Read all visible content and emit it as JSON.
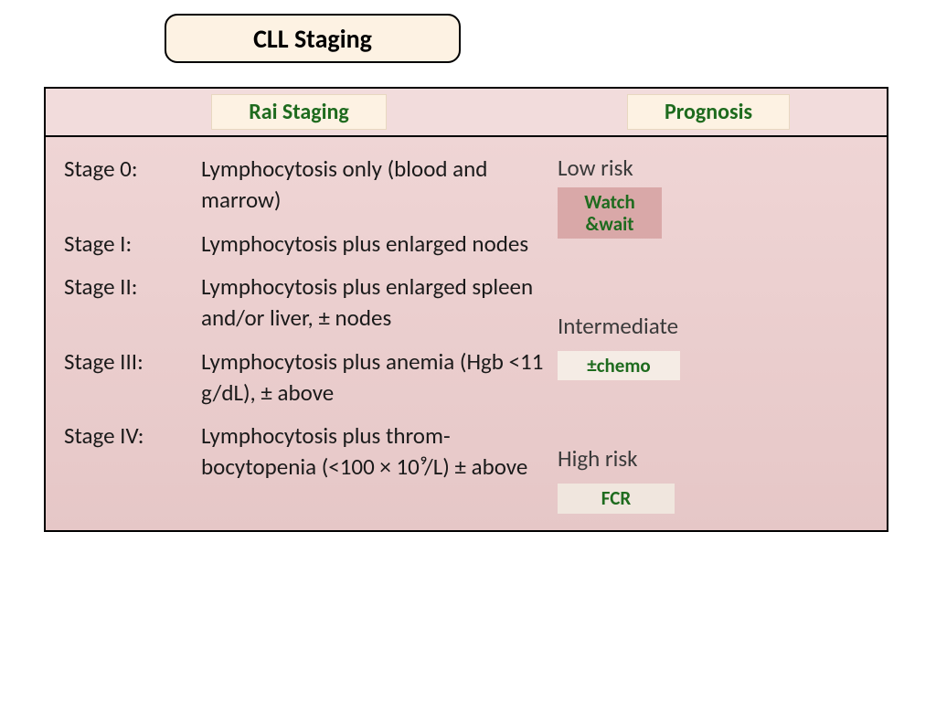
{
  "title": "CLL Staging",
  "headers": {
    "left": "Rai Staging",
    "right": "Prognosis"
  },
  "stages": [
    {
      "label": "Stage 0:",
      "desc": "Lymphocytosis only (blood and marrow)"
    },
    {
      "label": "Stage I:",
      "desc": "Lymphocytosis plus enlarged nodes"
    },
    {
      "label": "Stage II:",
      "desc": "Lymphocytosis plus enlarged spleen and/or liver, ± nodes"
    },
    {
      "label": "Stage III:",
      "desc": "Lymphocytosis plus anemia (Hgb <11 g/dL), ± above"
    },
    {
      "label": "Stage IV:",
      "desc": "Lymphocytosis plus throm-bocytopenia (<100 × 10⁹/L) ± above"
    }
  ],
  "prognosis": {
    "low": {
      "risk": "Low risk",
      "treatment": "Watch &wait"
    },
    "mid": {
      "risk": "Intermediate",
      "treatment": "±chemo"
    },
    "high": {
      "risk": "High risk",
      "treatment": "FCR"
    }
  },
  "colors": {
    "title_bg": "#fdf2e3",
    "border": "#000000",
    "header_bg": "#f2dcdc",
    "body_grad_top": "#efd5d5",
    "body_grad_bot": "#e6c7c7",
    "header_text": "#1e6b1e",
    "body_text": "#1a1a1a",
    "watch_bg": "#d9a8a8",
    "chemo_bg": "#f5ece5",
    "fcr_bg": "#f0e6de"
  },
  "fonts": {
    "title_size": 28,
    "header_size": 24,
    "body_size": 25,
    "treatment_size": 21
  }
}
